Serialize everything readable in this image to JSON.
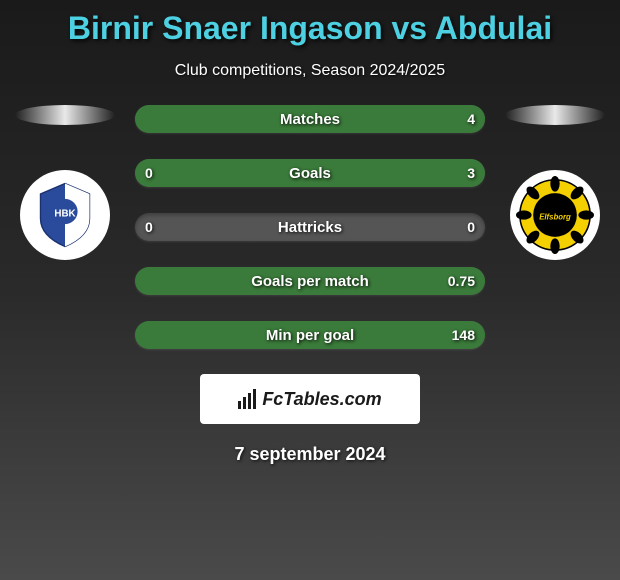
{
  "title": "Birnir Snaer Ingason vs Abdulai",
  "subtitle": "Club competitions, Season 2024/2025",
  "stats": [
    {
      "label": "Matches",
      "left_value": "",
      "right_value": "4",
      "left_fill_pct": 0,
      "right_fill_pct": 100
    },
    {
      "label": "Goals",
      "left_value": "0",
      "right_value": "3",
      "left_fill_pct": 0,
      "right_fill_pct": 100
    },
    {
      "label": "Hattricks",
      "left_value": "0",
      "right_value": "0",
      "left_fill_pct": 0,
      "right_fill_pct": 0
    },
    {
      "label": "Goals per match",
      "left_value": "",
      "right_value": "0.75",
      "left_fill_pct": 0,
      "right_fill_pct": 100
    },
    {
      "label": "Min per goal",
      "left_value": "",
      "right_value": "148",
      "left_fill_pct": 0,
      "right_fill_pct": 100
    }
  ],
  "colors": {
    "title_color": "#4dd0e1",
    "bar_bg": "#555555",
    "bar_fill_right": "#3a7a3a",
    "text_white": "#ffffff",
    "page_bg_top": "#1a1a1a",
    "page_bg_bottom": "#4a4a4a"
  },
  "footer": {
    "brand": "FcTables.com",
    "date": "7 september 2024"
  },
  "clubs": {
    "left_name": "HBK",
    "right_name": "Elfsborg"
  }
}
